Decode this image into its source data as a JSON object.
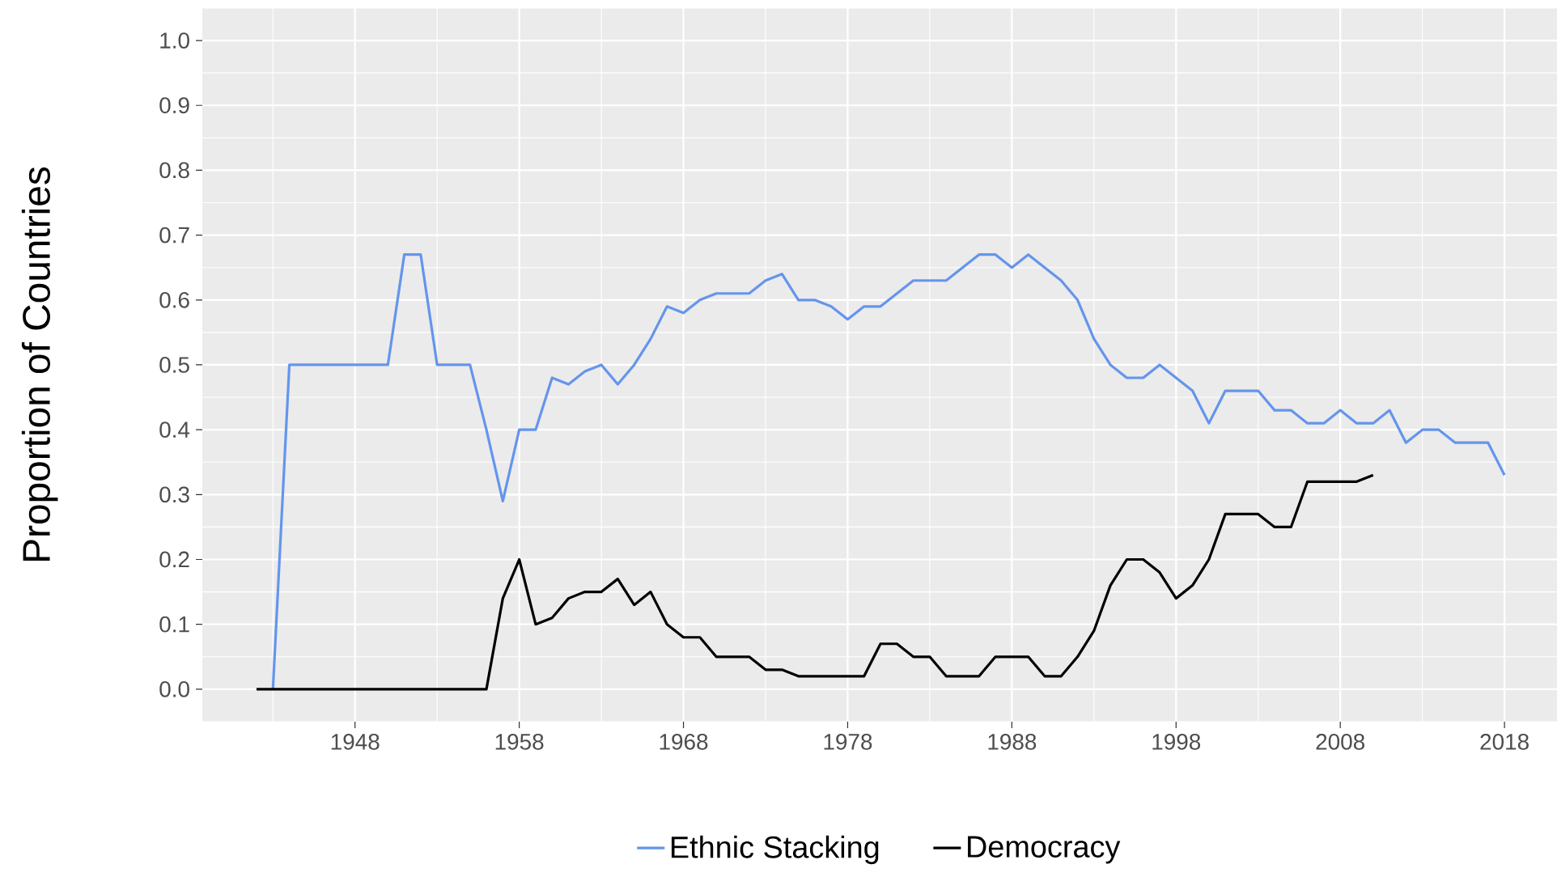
{
  "chart_data": {
    "type": "line",
    "ylabel": "Proportion of Countries",
    "x": [
      1942,
      1943,
      1944,
      1945,
      1946,
      1947,
      1948,
      1949,
      1950,
      1951,
      1952,
      1953,
      1954,
      1955,
      1956,
      1957,
      1958,
      1959,
      1960,
      1961,
      1962,
      1963,
      1964,
      1965,
      1966,
      1967,
      1968,
      1969,
      1970,
      1971,
      1972,
      1973,
      1974,
      1975,
      1976,
      1977,
      1978,
      1979,
      1980,
      1981,
      1982,
      1983,
      1984,
      1985,
      1986,
      1987,
      1988,
      1989,
      1990,
      1991,
      1992,
      1993,
      1994,
      1995,
      1996,
      1997,
      1998,
      1999,
      2000,
      2001,
      2002,
      2003,
      2004,
      2005,
      2006,
      2007,
      2008,
      2009,
      2010,
      2011,
      2012,
      2013,
      2014,
      2015,
      2016,
      2017,
      2018
    ],
    "series": [
      {
        "name": "Ethnic Stacking",
        "color": "#6495ed",
        "values": [
          null,
          0,
          0.5,
          0.5,
          0.5,
          0.5,
          0.5,
          0.5,
          0.5,
          0.67,
          0.67,
          0.5,
          0.5,
          0.5,
          0.4,
          0.29,
          0.4,
          0.4,
          0.48,
          0.47,
          0.49,
          0.5,
          0.47,
          0.5,
          0.54,
          0.59,
          0.58,
          0.6,
          0.61,
          0.61,
          0.61,
          0.63,
          0.64,
          0.6,
          0.6,
          0.59,
          0.57,
          0.59,
          0.59,
          0.61,
          0.63,
          0.63,
          0.63,
          0.65,
          0.67,
          0.67,
          0.65,
          0.67,
          0.65,
          0.63,
          0.6,
          0.54,
          0.5,
          0.48,
          0.48,
          0.5,
          0.48,
          0.46,
          0.41,
          0.46,
          0.46,
          0.46,
          0.43,
          0.43,
          0.41,
          0.41,
          0.43,
          0.41,
          0.41,
          0.43,
          0.38,
          0.4,
          0.4,
          0.38,
          0.38,
          0.38,
          0.33
        ]
      },
      {
        "name": "Democracy",
        "color": "#000000",
        "values": [
          0,
          0,
          0,
          0,
          0,
          0,
          0,
          0,
          0,
          0,
          0,
          0,
          0,
          0,
          0,
          0.14,
          0.2,
          0.1,
          0.11,
          0.14,
          0.15,
          0.15,
          0.17,
          0.13,
          0.15,
          0.1,
          0.08,
          0.08,
          0.05,
          0.05,
          0.05,
          0.03,
          0.03,
          0.02,
          0.02,
          0.02,
          0.02,
          0.02,
          0.07,
          0.07,
          0.05,
          0.05,
          0.02,
          0.02,
          0.02,
          0.05,
          0.05,
          0.05,
          0.02,
          0.02,
          0.05,
          0.09,
          0.16,
          0.2,
          0.2,
          0.18,
          0.14,
          0.16,
          0.2,
          0.27,
          0.27,
          0.27,
          0.25,
          0.25,
          0.32,
          0.32,
          0.32,
          0.32,
          0.33,
          null,
          null,
          null,
          null,
          null,
          null,
          null,
          null
        ]
      }
    ],
    "xlim": [
      1938.7,
      2021.2
    ],
    "ylim": [
      -0.05,
      1.05
    ],
    "xticks": [
      1948,
      1958,
      1968,
      1978,
      1988,
      1998,
      2008,
      2018
    ],
    "yticks": [
      {
        "value": 0,
        "label": "0.0"
      },
      0.1,
      0.2,
      0.3,
      0.4,
      0.5,
      0.6,
      0.7,
      0.8,
      0.9,
      {
        "value": 1,
        "label": "1.0"
      }
    ],
    "grid": true,
    "legend": "bottom"
  }
}
